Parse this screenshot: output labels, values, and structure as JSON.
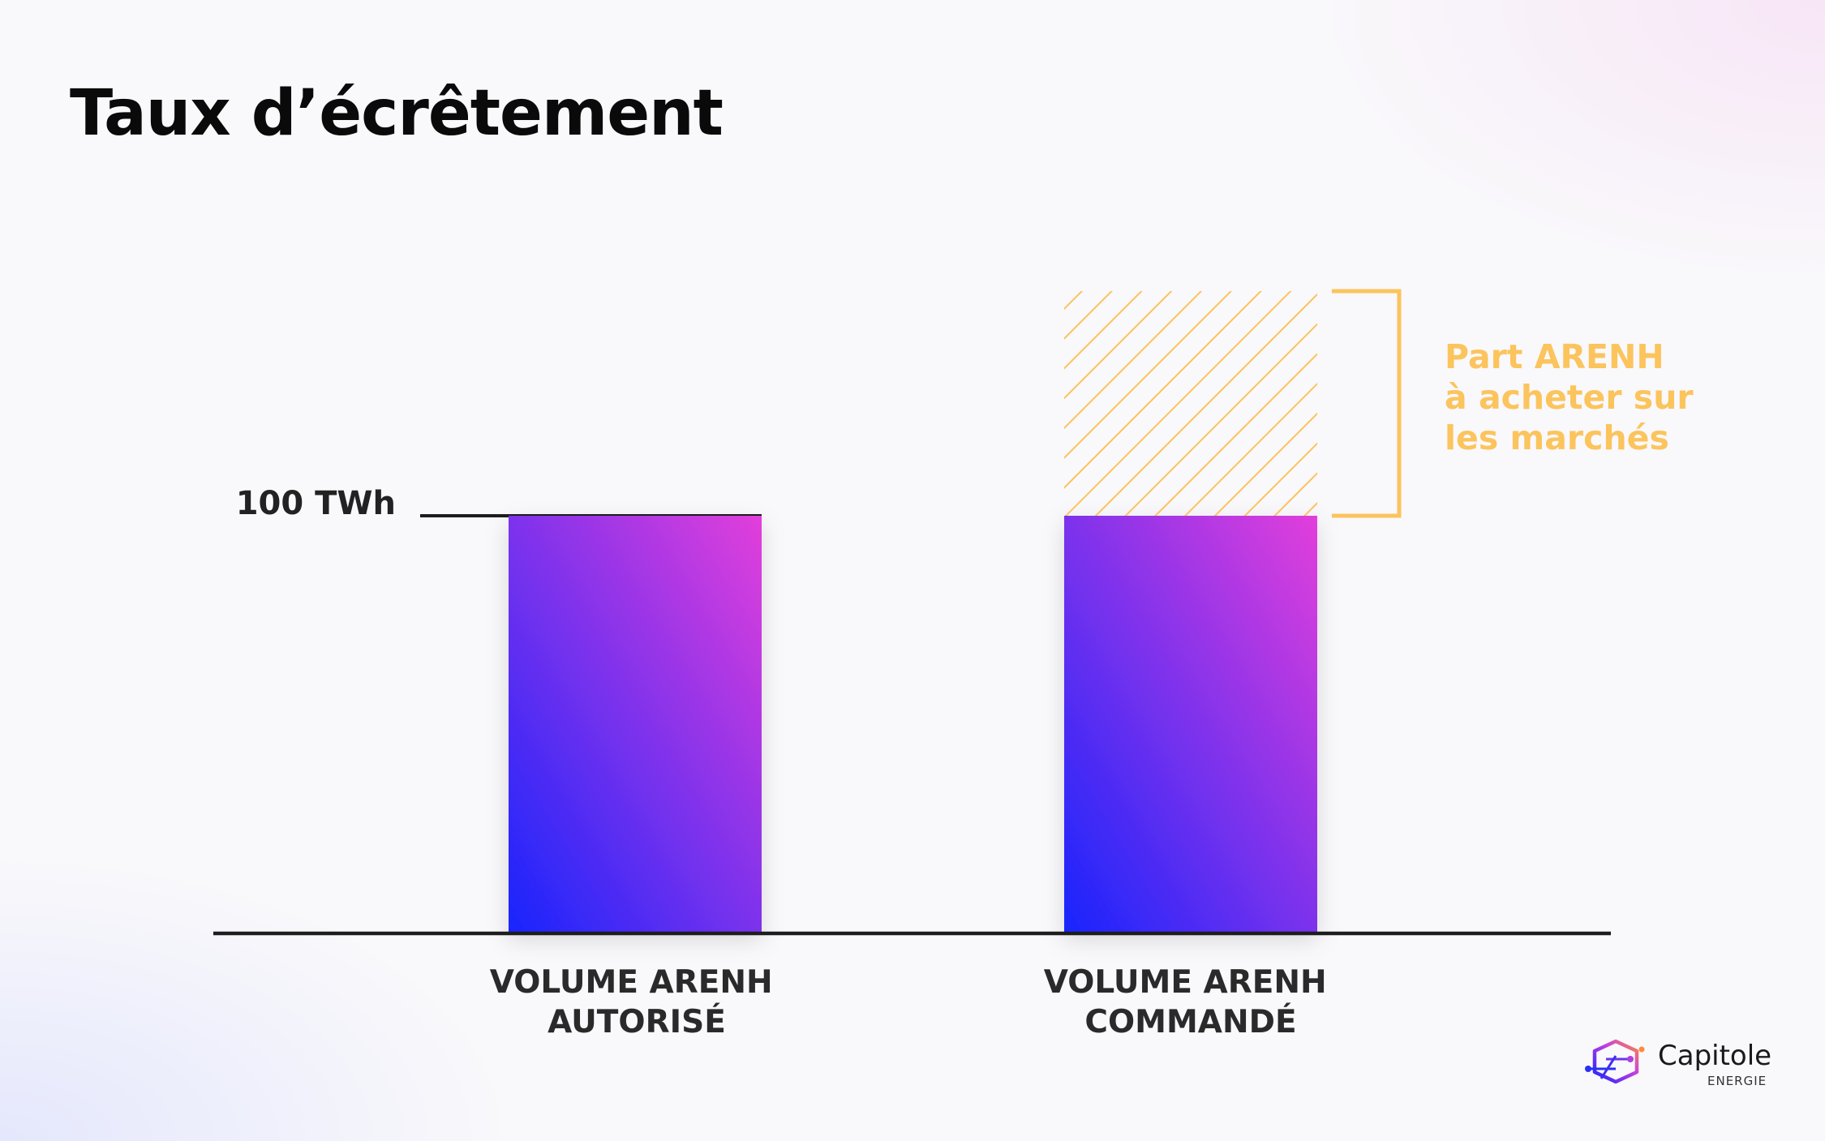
{
  "title": "Taux d’écrêtement",
  "chart_data": {
    "type": "bar",
    "title": "Taux d’écrêtement",
    "categories": [
      [
        "VOLUME ARENH",
        "AUTORISÉ"
      ],
      [
        "VOLUME ARENH",
        "COMMANDÉ"
      ]
    ],
    "values": [
      100,
      100
    ],
    "excess": [
      0,
      54
    ],
    "ylim": [
      0,
      100
    ],
    "grid": false,
    "reference_line": {
      "value": 100,
      "label": "100 TWh"
    },
    "annotation": {
      "lines": [
        "Part ARENH",
        "à acheter sur",
        "les marchés"
      ],
      "color": "#fbc45c"
    },
    "colors": {
      "bar_gradient": [
        "#1825fd",
        "#e23fdb"
      ],
      "hatch": "#fbc45c",
      "axis": "#1d1d1d"
    }
  },
  "logo": {
    "name": "Capitole",
    "sub": "ENERGIE"
  }
}
